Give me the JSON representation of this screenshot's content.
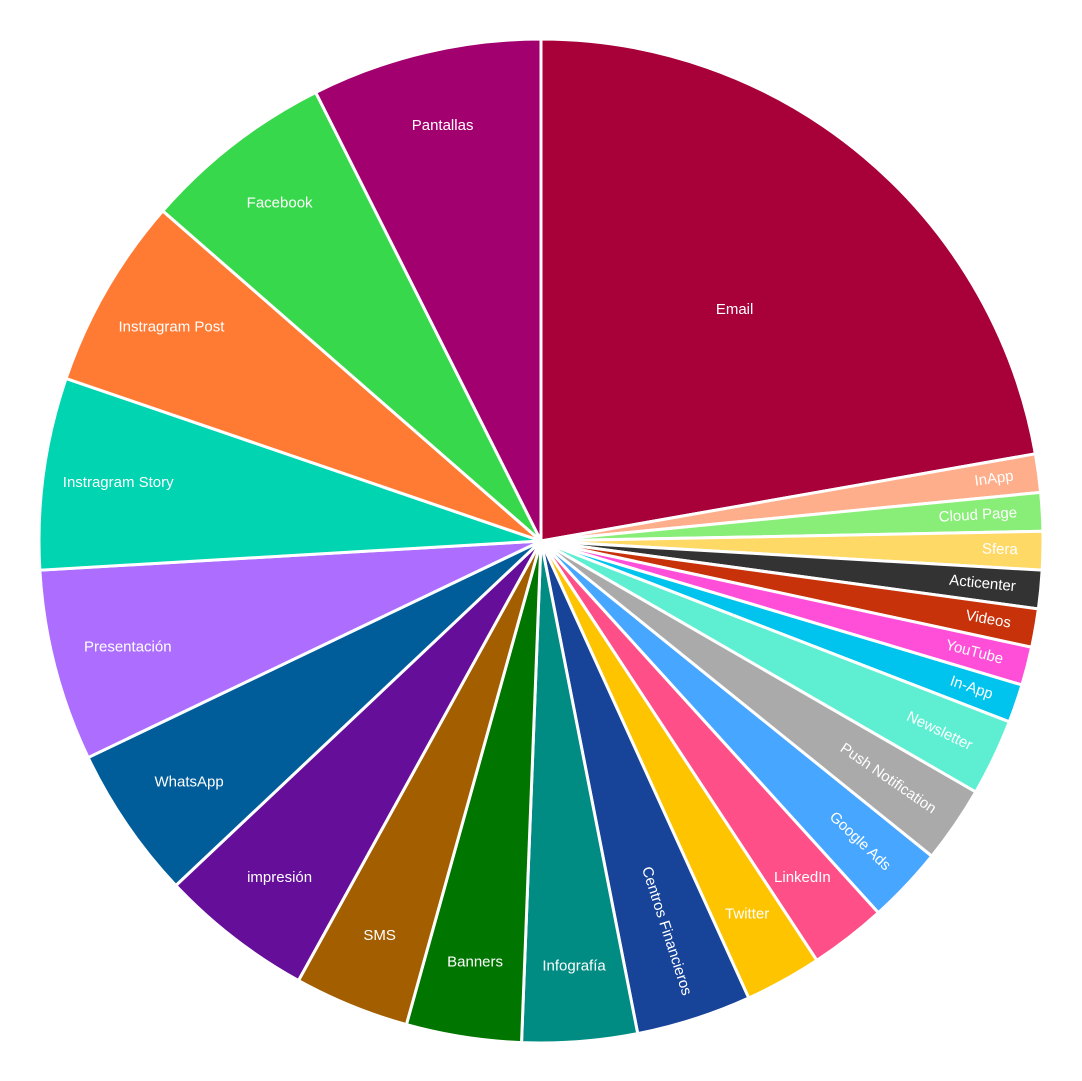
{
  "chart_data": {
    "type": "pie",
    "categories": [
      "Email",
      "InApp",
      "Cloud Page",
      "Sfera",
      "Acticenter",
      "Videos",
      "YouTube",
      "In-App",
      "Newsletter",
      "Push Notification",
      "Google Ads",
      "LinkedIn",
      "Twitter",
      "Centros Financieros",
      "Infografía",
      "Banners",
      "SMS",
      "impresión",
      "WhatsApp",
      "Presentación",
      "Instragram Story",
      "Instragram Post",
      "Facebook",
      "Pantallas"
    ],
    "values": [
      18,
      1,
      1,
      1,
      1,
      1,
      1,
      1,
      2,
      2,
      2,
      2,
      2,
      3,
      3,
      3,
      3,
      4,
      4,
      5,
      5,
      5,
      5,
      6
    ],
    "colors": [
      "#a80038",
      "#ffae8c",
      "#88ee77",
      "#ffd966",
      "#333333",
      "#c8320a",
      "#ff4fd8",
      "#00c3ee",
      "#5eefd2",
      "#aaaaaa",
      "#47a6ff",
      "#ff4f88",
      "#ffc400",
      "#174399",
      "#008c82",
      "#007500",
      "#a35e00",
      "#640e9a",
      "#005d99",
      "#ad6eff",
      "#00d4b0",
      "#ff7a33",
      "#37d84b",
      "#a3006f"
    ],
    "direction": "clockwise"
  }
}
